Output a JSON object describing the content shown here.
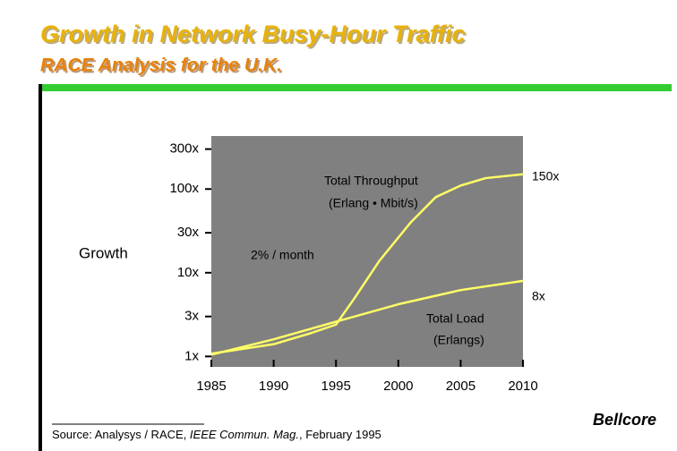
{
  "chart_data": {
    "type": "line",
    "title": "Growth in Network Busy-Hour Traffic",
    "subtitle": "RACE Analysis for the U.K.",
    "y_label": "Growth",
    "log_y": true,
    "xlim": [
      1985,
      2010
    ],
    "xticks": [
      1985,
      1990,
      1995,
      2000,
      2005,
      2010
    ],
    "ylim": [
      0.75,
      430
    ],
    "yticks": [
      {
        "value": 1,
        "label": "1x"
      },
      {
        "value": 3,
        "label": "3x"
      },
      {
        "value": 10,
        "label": "10x"
      },
      {
        "value": 30,
        "label": "30x"
      },
      {
        "value": 100,
        "label": "100x"
      },
      {
        "value": 300,
        "label": "300x"
      }
    ],
    "series": [
      {
        "name": "Total Throughput",
        "color": "#ffff66",
        "x": [
          1985,
          1990,
          1993,
          1995,
          1996.5,
          1998.5,
          2001,
          2003,
          2005,
          2007,
          2010
        ],
        "values": [
          1.08,
          1.4,
          1.9,
          2.4,
          5,
          14,
          40,
          80,
          110,
          135,
          150
        ]
      },
      {
        "name": "Total Load",
        "color": "#ffff66",
        "x": [
          1985,
          1990,
          1995,
          2000,
          2005,
          2010
        ],
        "values": [
          1.05,
          1.6,
          2.6,
          4.2,
          6.2,
          8
        ]
      }
    ],
    "annotations": [
      "Total Throughput",
      "(Erlang • Mbit/s)",
      "150x",
      "2% / month",
      "8x",
      "Total Load",
      "(Erlangs)"
    ],
    "source": [
      "Source: Analysys / RACE, ",
      "IEEE Commun. Mag.",
      ", February 1995"
    ],
    "logo": "Bellcore"
  }
}
